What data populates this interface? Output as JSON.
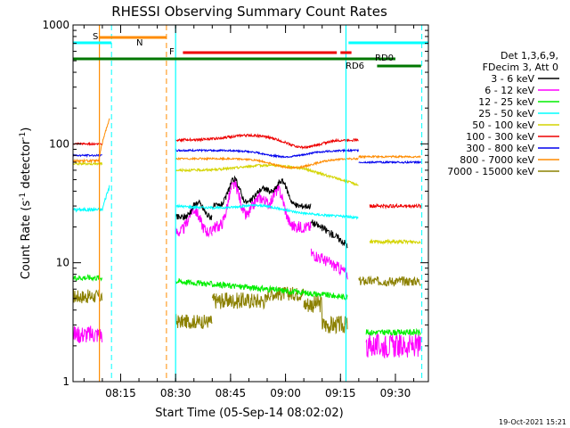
{
  "chart_data": {
    "type": "line",
    "title": "RHESSI Observing Summary Count Rates",
    "xlabel": "Start Time (05-Sep-14 08:02:02)",
    "ylabel_main": "Count Rate (s",
    "ylabel_sup1": "-1",
    "ylabel_mid": " detector",
    "ylabel_sup2": "-1",
    "ylabel_end": ")",
    "x_range_minutes": [
      "08:02",
      "09:39"
    ],
    "y_scale": "log",
    "ylim": [
      1,
      1000
    ],
    "x_ticks": [
      {
        "label": "08:15",
        "minutes": 495
      },
      {
        "label": "08:30",
        "minutes": 510
      },
      {
        "label": "08:45",
        "minutes": 525
      },
      {
        "label": "09:00",
        "minutes": 540
      },
      {
        "label": "09:15",
        "minutes": 555
      },
      {
        "label": "09:30",
        "minutes": 570
      }
    ],
    "y_ticks": [
      {
        "label": "1",
        "value": 1
      },
      {
        "label": "10",
        "value": 10
      },
      {
        "label": "100",
        "value": 100
      },
      {
        "label": "1000",
        "value": 1000
      }
    ],
    "legend_header": [
      "Det 1,3,6,9,",
      "FDecim 3, Att 0"
    ],
    "legend_placement": "right",
    "series": [
      {
        "name": "3 - 6 keV",
        "color": "#000000"
      },
      {
        "name": "6 - 12 keV",
        "color": "#ff00ff"
      },
      {
        "name": "12 - 25 keV",
        "color": "#00ee00"
      },
      {
        "name": "25 - 50 keV",
        "color": "#00ffff"
      },
      {
        "name": "50 - 100 keV",
        "color": "#d4d400"
      },
      {
        "name": "100 - 300 keV",
        "color": "#ee0000"
      },
      {
        "name": "300 - 800 keV",
        "color": "#0000ee"
      },
      {
        "name": "800 - 7000 keV",
        "color": "#ff8c00"
      },
      {
        "name": "7000 - 15000 keV",
        "color": "#8b8000"
      }
    ],
    "flags": [
      {
        "label": "S",
        "color": "#ff8c00"
      },
      {
        "label": "N",
        "color": "#00ffff"
      },
      {
        "label": "F",
        "color": "#ee0000"
      },
      {
        "label": "RD0",
        "color": "#007700"
      },
      {
        "label": "RD6",
        "color": "#007700"
      }
    ],
    "timestamp": "19-Oct-2021 15:21"
  }
}
